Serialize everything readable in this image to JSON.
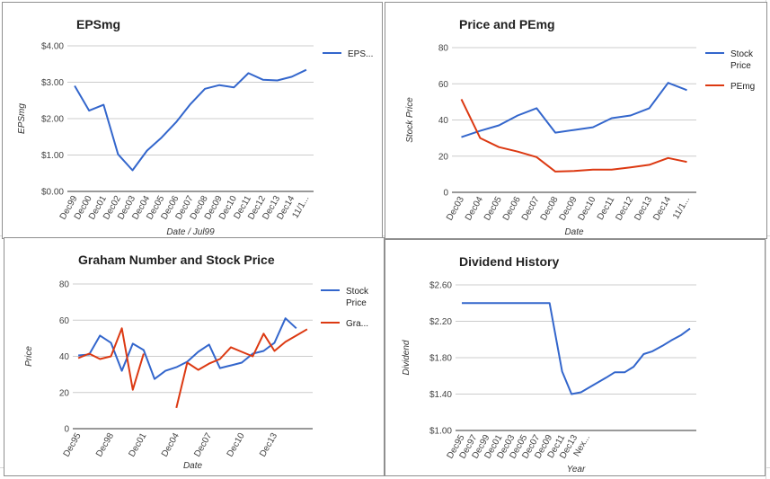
{
  "colors": {
    "blue": "#3366cc",
    "red": "#dc3912",
    "grid": "#cccccc",
    "axis": "#333333"
  },
  "chart_data": [
    {
      "type": "line",
      "title": "EPSmg",
      "xlabel": "Date / Jul99",
      "ylabel": "EPSmg",
      "ylim": [
        0,
        4
      ],
      "y_ticks": [
        "$0.00",
        "$1.00",
        "$2.00",
        "$3.00",
        "$4.00"
      ],
      "categories": [
        "Dec99",
        "Dec00",
        "Dec01",
        "Dec02",
        "Dec03",
        "Dec04",
        "Dec05",
        "Dec06",
        "Dec07",
        "Dec08",
        "Dec09",
        "Dec10",
        "Dec11",
        "Dec12",
        "Dec13",
        "Dec14",
        "11/1..."
      ],
      "grid": true,
      "legend_position": "right",
      "series": [
        {
          "name": "EPS...",
          "color": "#3366cc",
          "values": [
            2.9,
            2.22,
            2.38,
            1.02,
            0.58,
            1.12,
            1.48,
            1.9,
            2.4,
            2.82,
            2.92,
            2.86,
            3.25,
            3.07,
            3.05,
            3.15,
            3.34
          ]
        }
      ]
    },
    {
      "type": "line",
      "title": "Price and PEmg",
      "xlabel": "Date",
      "ylabel": "Stock Price",
      "ylim": [
        0,
        80
      ],
      "y_ticks": [
        "0",
        "20",
        "40",
        "60",
        "80"
      ],
      "categories": [
        "Dec03",
        "Dec04",
        "Dec05",
        "Dec06",
        "Dec07",
        "Dec08",
        "Dec09",
        "Dec10",
        "Dec11",
        "Dec12",
        "Dec13",
        "Dec14",
        "11/1..."
      ],
      "grid": true,
      "legend_position": "right",
      "series": [
        {
          "name": "Stock Price",
          "legend_lines": [
            "Stock",
            "Price"
          ],
          "color": "#3366cc",
          "values": [
            30.5,
            34,
            37,
            42.5,
            46.5,
            33,
            34.5,
            36,
            41,
            42.5,
            46.5,
            60.5,
            56.5
          ]
        },
        {
          "name": "PEmg",
          "legend_lines": [
            "PEmg"
          ],
          "color": "#dc3912",
          "values": [
            51.5,
            30,
            25,
            22.5,
            19.5,
            11.5,
            11.8,
            12.5,
            12.5,
            13.8,
            15.2,
            19,
            16.8
          ]
        }
      ]
    },
    {
      "type": "line",
      "title": "Graham Number and Stock Price",
      "xlabel": "Date",
      "ylabel": "Price",
      "ylim": [
        0,
        80
      ],
      "y_ticks": [
        "0",
        "20",
        "40",
        "60",
        "80"
      ],
      "x_tick_labels": [
        "Dec95",
        "Dec98",
        "Dec01",
        "Dec04",
        "Dec07",
        "Dec10",
        "Dec13"
      ],
      "x_tick_positions": [
        0,
        3,
        6,
        9,
        12,
        15,
        18
      ],
      "grid": true,
      "legend_position": "right",
      "series": [
        {
          "name": "Stock Price",
          "legend_lines": [
            "Stock",
            "Price"
          ],
          "color": "#3366cc",
          "points": [
            [
              0,
              40.5
            ],
            [
              1,
              41
            ],
            [
              2,
              51.5
            ],
            [
              3,
              47.5
            ],
            [
              4,
              32
            ],
            [
              5,
              47
            ],
            [
              6,
              43.5
            ],
            [
              7,
              27.5
            ],
            [
              8,
              32
            ],
            [
              9,
              34
            ],
            [
              10,
              37
            ],
            [
              11,
              42.5
            ],
            [
              12,
              46.5
            ],
            [
              13,
              33.5
            ],
            [
              14,
              35
            ],
            [
              15,
              36.5
            ],
            [
              16,
              41.5
            ],
            [
              17,
              43
            ],
            [
              18,
              47.5
            ],
            [
              19,
              61
            ],
            [
              20,
              55.5
            ]
          ]
        },
        {
          "name": "Gra...",
          "legend_lines": [
            "Gra..."
          ],
          "color": "#dc3912",
          "points": [
            [
              0,
              39
            ],
            [
              1,
              41.5
            ],
            [
              2,
              38.5
            ],
            [
              3,
              40
            ],
            [
              4,
              55.5
            ],
            [
              5,
              21.5
            ],
            [
              6,
              41.5
            ],
            [
              null,
              null
            ],
            [
              9,
              11.5
            ],
            [
              10,
              36.5
            ],
            [
              11,
              32.5
            ],
            [
              12,
              36
            ],
            [
              13,
              38.5
            ],
            [
              14,
              45
            ],
            [
              15,
              42.5
            ],
            [
              16,
              40
            ],
            [
              17,
              52.5
            ],
            [
              18,
              43
            ],
            [
              19,
              48
            ],
            [
              20,
              51.5
            ],
            [
              21,
              55
            ]
          ]
        }
      ]
    },
    {
      "type": "line",
      "title": "Dividend History",
      "xlabel": "Year",
      "ylabel": "Dividend",
      "ylim": [
        1.0,
        2.6
      ],
      "y_ticks": [
        "$1.00",
        "$1.40",
        "$1.80",
        "$2.20",
        "$2.60"
      ],
      "categories": [
        "Dec95",
        "Dec97",
        "Dec99",
        "Dec01",
        "Dec03",
        "Dec05",
        "Dec07",
        "Dec09",
        "Dec11",
        "Dec13",
        "Nex..."
      ],
      "grid": true,
      "legend_position": "none",
      "series": [
        {
          "name": "",
          "color": "#3366cc",
          "points": [
            [
              0,
              2.4
            ],
            [
              1,
              2.4
            ],
            [
              2,
              2.4
            ],
            [
              3,
              2.4
            ],
            [
              4,
              2.4
            ],
            [
              5,
              2.4
            ],
            [
              6,
              2.4
            ],
            [
              7,
              2.4
            ],
            [
              8,
              1.65
            ],
            [
              8.75,
              1.4
            ],
            [
              9.5,
              1.42
            ],
            [
              10.5,
              1.5
            ],
            [
              11.5,
              1.58
            ],
            [
              12.2,
              1.64
            ],
            [
              13,
              1.64
            ],
            [
              13.7,
              1.7
            ],
            [
              14.5,
              1.84
            ],
            [
              15.2,
              1.87
            ],
            [
              16,
              1.93
            ],
            [
              16.7,
              1.99
            ],
            [
              17.5,
              2.05
            ],
            [
              18.2,
              2.12
            ]
          ]
        }
      ]
    }
  ]
}
